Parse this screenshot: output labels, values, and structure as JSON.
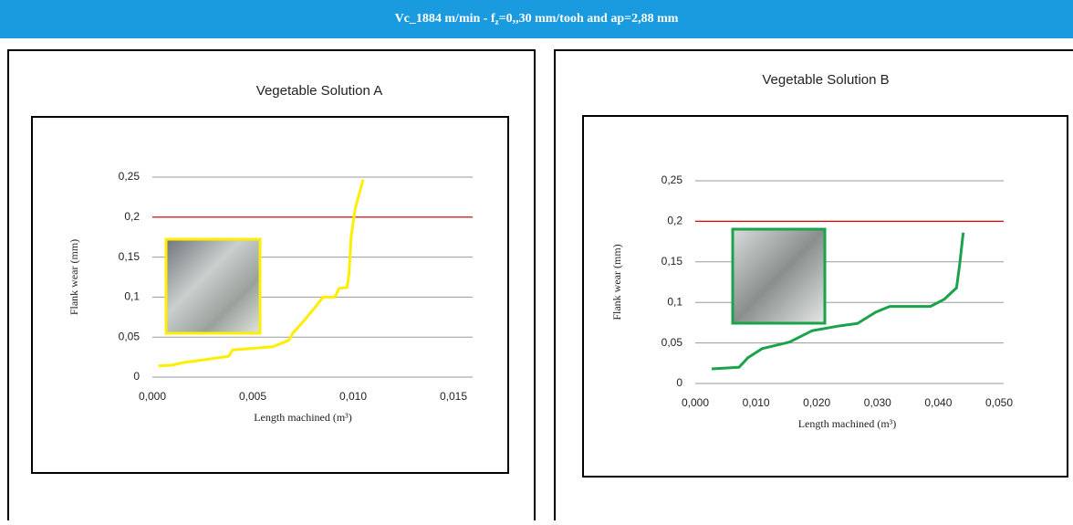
{
  "header": {
    "title_parts": [
      "Vc_1884 m/min  -  f",
      "z",
      "=0,,30 mm/tooh  and ap=2,88 mm"
    ]
  },
  "chart_data": [
    {
      "type": "line",
      "title": "Vegetable Solution  A",
      "x_label": "Length machined (m³)",
      "y_label": "Flank wear (mm)",
      "xlim": [
        0,
        0.015
      ],
      "ylim": [
        0,
        0.25
      ],
      "xticks": [
        {
          "value": 0,
          "label": "0,000"
        },
        {
          "value": 0.005,
          "label": "0,005"
        },
        {
          "value": 0.01,
          "label": "0,010"
        },
        {
          "value": 0.015,
          "label": "0,015"
        }
      ],
      "yticks": [
        0,
        {
          "value": 0.05,
          "label": "0,05"
        },
        {
          "value": 0.1,
          "label": "0,1"
        },
        {
          "value": 0.15,
          "label": "0,15"
        },
        {
          "value": 0.2,
          "label": "0,2"
        },
        {
          "value": 0.25,
          "label": "0,25"
        }
      ],
      "grid": true,
      "reference_line": 0.2,
      "reference_color": "#e00000",
      "series": [
        {
          "color": "#ffee00",
          "x": [
            0.0003,
            0.001,
            0.0015,
            0.0038,
            0.004,
            0.006,
            0.0068,
            0.007,
            0.0074,
            0.0081,
            0.0085,
            0.0091,
            0.0093,
            0.0097,
            0.0098,
            0.0099,
            0.0101,
            0.0105
          ],
          "values": [
            0.014,
            0.015,
            0.018,
            0.026,
            0.034,
            0.038,
            0.046,
            0.055,
            0.066,
            0.087,
            0.1,
            0.1,
            0.111,
            0.112,
            0.13,
            0.175,
            0.21,
            0.247
          ]
        }
      ]
    },
    {
      "type": "line",
      "title": "Vegetable Solution  B",
      "x_label": "Length machined (m³)",
      "y_label": "Flank wear (mm)",
      "xlim": [
        0,
        0.05
      ],
      "ylim": [
        0,
        0.25
      ],
      "xticks": [
        {
          "value": 0,
          "label": "0,000"
        },
        {
          "value": 0.01,
          "label": "0,010"
        },
        {
          "value": 0.02,
          "label": "0,020"
        },
        {
          "value": 0.03,
          "label": "0,030"
        },
        {
          "value": 0.04,
          "label": "0,040"
        },
        {
          "value": 0.05,
          "label": "0,050"
        }
      ],
      "yticks": [
        0,
        {
          "value": 0.05,
          "label": "0,05"
        },
        {
          "value": 0.1,
          "label": "0,1"
        },
        {
          "value": 0.15,
          "label": "0,15"
        },
        {
          "value": 0.2,
          "label": "0,2"
        },
        {
          "value": 0.25,
          "label": "0,25"
        }
      ],
      "grid": true,
      "reference_line": 0.2,
      "reference_color": "#e00000",
      "series": [
        {
          "color": "#1aa34a",
          "x": [
            0.0027,
            0.0072,
            0.0087,
            0.011,
            0.0155,
            0.0192,
            0.0237,
            0.0267,
            0.0297,
            0.032,
            0.0387,
            0.041,
            0.043,
            0.0435,
            0.0441
          ],
          "values": [
            0.018,
            0.02,
            0.032,
            0.043,
            0.051,
            0.065,
            0.071,
            0.074,
            0.088,
            0.095,
            0.095,
            0.104,
            0.118,
            0.146,
            0.186
          ]
        }
      ]
    }
  ]
}
